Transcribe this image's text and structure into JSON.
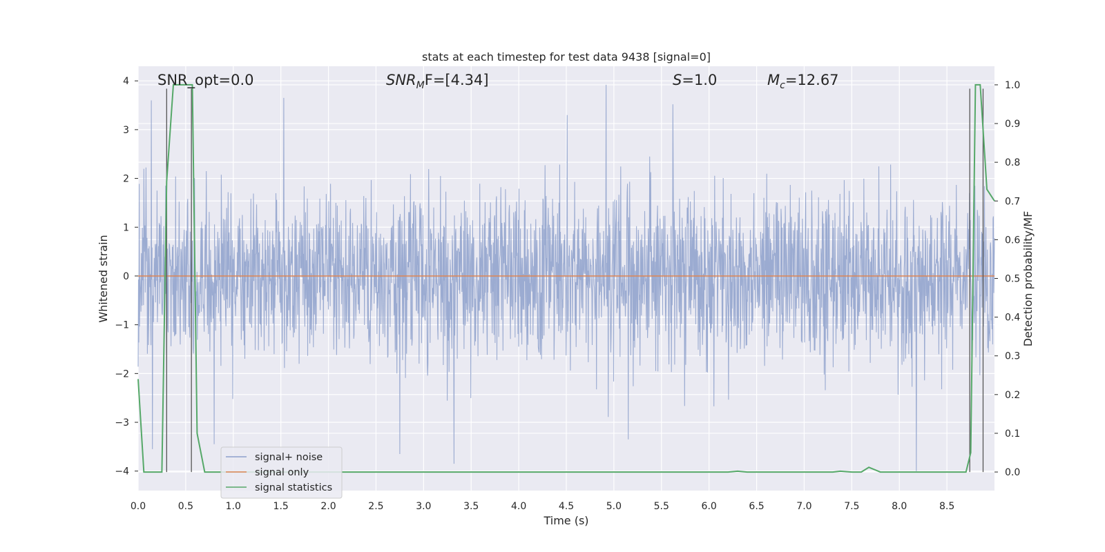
{
  "chart_data": {
    "type": "line",
    "title": "stats at each timestep for test data 9438 [signal=0]",
    "xlabel": "Time (s)",
    "ylabel": "Whitened strain",
    "y2label": "Detection probability/MF",
    "xlim": [
      0,
      9.0
    ],
    "ylim": [
      -4.4,
      4.3
    ],
    "y2lim": [
      -0.048,
      1.048
    ],
    "x_ticks": [
      "0.0",
      "0.5",
      "1.0",
      "1.5",
      "2.0",
      "2.5",
      "3.0",
      "3.5",
      "4.0",
      "4.5",
      "5.0",
      "5.5",
      "6.0",
      "6.5",
      "7.0",
      "7.5",
      "8.0",
      "8.5"
    ],
    "y_ticks": [
      "4",
      "3",
      "2",
      "1",
      "0",
      "−1",
      "−2",
      "−3",
      "−4"
    ],
    "y2_ticks": [
      "1.0",
      "0.9",
      "0.8",
      "0.7",
      "0.6",
      "0.5",
      "0.4",
      "0.3",
      "0.2",
      "0.1",
      "0.0"
    ],
    "grid": true,
    "legend_position": "lower-left",
    "colors": {
      "background": "#eaeaf2",
      "grid": "#ffffff",
      "noise": "#8da0cb",
      "signal_only": "#dd8452",
      "statistics": "#55a868",
      "marker_lines": "#555555"
    },
    "annotations": {
      "snr_opt": "SNR_opt=0.0",
      "snr_mf_prefix": "SNR",
      "snr_mf_sub": "M",
      "snr_mf_suffix": "F=[4.34]",
      "s_prefix": "S",
      "s_value": "=1.0",
      "mc_prefix": "M",
      "mc_sub": "c",
      "mc_value": "=12.67"
    },
    "series": [
      {
        "name": "signal+ noise",
        "kind": "noise",
        "description_points": "dense gaussian-like whitened strain, std ~0.8",
        "extremes": [
          {
            "x": 0.14,
            "y": 3.6
          },
          {
            "x": 0.15,
            "y": -3.55
          },
          {
            "x": 0.8,
            "y": -3.45
          },
          {
            "x": 1.53,
            "y": 3.65
          },
          {
            "x": 2.75,
            "y": -3.65
          },
          {
            "x": 3.32,
            "y": -3.85
          },
          {
            "x": 4.92,
            "y": 3.92
          },
          {
            "x": 5.15,
            "y": -3.35
          },
          {
            "x": 5.62,
            "y": 3.52
          },
          {
            "x": 8.18,
            "y": -4.0
          }
        ]
      },
      {
        "name": "signal only",
        "kind": "flat",
        "y": 0.0
      },
      {
        "name": "signal statistics",
        "kind": "stats",
        "axis": "right",
        "x": [
          0.0,
          0.06,
          0.2,
          0.25,
          0.3,
          0.37,
          0.48,
          0.57,
          0.62,
          0.7,
          6.2,
          6.3,
          6.4,
          7.3,
          7.38,
          7.5,
          7.6,
          7.68,
          7.8,
          8.7,
          8.75,
          8.8,
          8.85,
          8.92,
          9.0
        ],
        "values": [
          0.24,
          0.0,
          0.0,
          0.0,
          0.75,
          1.0,
          1.0,
          1.0,
          0.1,
          0.0,
          0.0,
          0.002,
          0.0,
          0.0,
          0.002,
          0.0,
          0.0,
          0.012,
          0.0,
          0.0,
          0.05,
          1.0,
          1.0,
          0.73,
          0.7
        ]
      }
    ],
    "vertical_markers": [
      {
        "x": 0.3,
        "y_top": 0.99
      },
      {
        "x": 0.56,
        "y_top": 0.99
      },
      {
        "x": 8.74,
        "y_top": 0.99
      },
      {
        "x": 8.88,
        "y_top": 0.99
      }
    ],
    "legend": [
      "signal+ noise",
      "signal only",
      "signal statistics"
    ]
  }
}
